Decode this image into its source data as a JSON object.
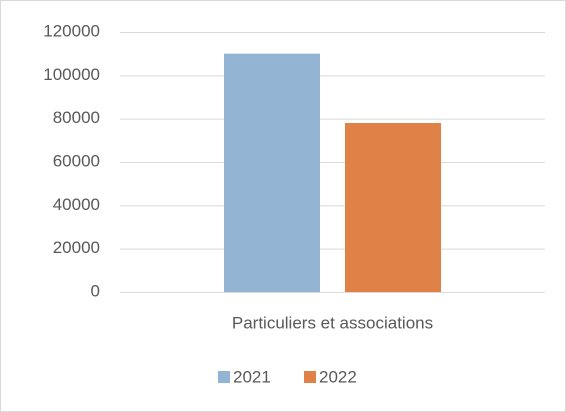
{
  "chart_data": {
    "type": "bar",
    "categories": [
      "Particuliers et associations"
    ],
    "series": [
      {
        "name": "2021",
        "color": "#94b4d4",
        "values": [
          110000
        ]
      },
      {
        "name": "2022",
        "color": "#e08247",
        "values": [
          78000
        ]
      }
    ],
    "ylim": [
      0,
      120000
    ],
    "yticks": [
      0,
      20000,
      40000,
      60000,
      80000,
      100000,
      120000
    ],
    "grid": true,
    "legend": "bottom"
  }
}
